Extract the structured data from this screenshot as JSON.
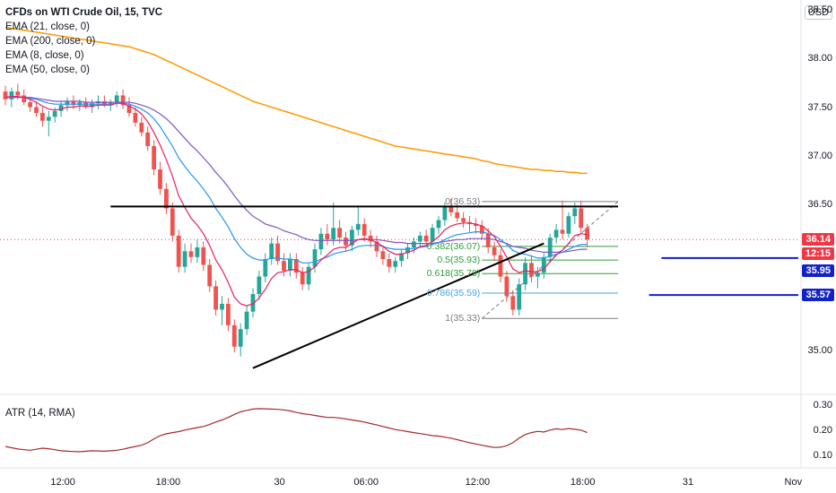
{
  "legend": {
    "symbol": "CFDs on WTI Crude Oil, 15, TVC",
    "ema21": "EMA (21, close, 0)",
    "ema200": "EMA (200, close, 0)",
    "ema8": "EMA (8, close, 0)",
    "ema50": "EMA (50, close, 0)"
  },
  "atr_label": "ATR (14, RMA)",
  "currency": "USD",
  "colors": {
    "up": "#26a69a",
    "down": "#ef5350",
    "ema8": "#e91e63",
    "ema21": "#2196f3",
    "ema50": "#7e57c2",
    "ema200": "#ff9800",
    "atr": "#a52a2a",
    "marker_blue": "#1321c8",
    "price_red": "#f23645",
    "fib_0_5": "#2e9c3e",
    "fib_0_786": "#4aa2e2",
    "fib_grey": "#787b86"
  },
  "price_axis": {
    "ticks": [
      "38.50",
      "38.00",
      "37.50",
      "37.00",
      "36.50",
      "35.00"
    ],
    "tick_values": [
      38.5,
      38.0,
      37.5,
      37.0,
      36.5,
      35.0
    ]
  },
  "price_tags": [
    {
      "label": "36.14",
      "value": 36.14,
      "color": "#f23645"
    },
    {
      "label": "12:15",
      "value": 35.94,
      "color": "#f23645"
    },
    {
      "label": "35.95",
      "value": 35.95,
      "color": "#1321c8"
    },
    {
      "label": "35.57",
      "value": 35.57,
      "color": "#1321c8"
    }
  ],
  "atr_axis": {
    "ticks": [
      "0.30",
      "0.20",
      "0.10"
    ],
    "tick_values": [
      0.3,
      0.2,
      0.1
    ]
  },
  "time_axis": {
    "labels": [
      "12:00",
      "18:00",
      "30",
      "06:00",
      "12:00",
      "18:00",
      "31",
      "Nov"
    ]
  },
  "fib_levels": [
    {
      "label": "0(36.53)",
      "ratio": 0,
      "price": 36.53,
      "color": "#787b86"
    },
    {
      "label": "0.382(36.07)",
      "ratio": 0.382,
      "price": 36.07,
      "color": "#2e9c3e"
    },
    {
      "label": "0.5(35.93)",
      "ratio": 0.5,
      "price": 35.93,
      "color": "#2e9c3e"
    },
    {
      "label": "0.618(35.79)",
      "ratio": 0.618,
      "price": 35.79,
      "color": "#2e9c3e"
    },
    {
      "label": "0.786(35.59)",
      "ratio": 0.786,
      "price": 35.59,
      "color": "#4aa2e2"
    },
    {
      "label": "1(35.33)",
      "ratio": 1,
      "price": 35.33,
      "color": "#787b86"
    }
  ],
  "chart_data": {
    "type": "candlestick",
    "title": "CFDs on WTI Crude Oil, 15, TVC",
    "ylim": [
      34.55,
      38.6
    ],
    "atr_ylim": [
      0.05,
      0.32
    ],
    "candles": [
      [
        37.66,
        37.72,
        37.52,
        37.58
      ],
      [
        37.58,
        37.7,
        37.5,
        37.66
      ],
      [
        37.66,
        37.74,
        37.58,
        37.62
      ],
      [
        37.62,
        37.68,
        37.52,
        37.55
      ],
      [
        37.55,
        37.6,
        37.45,
        37.5
      ],
      [
        37.5,
        37.56,
        37.4,
        37.44
      ],
      [
        37.44,
        37.5,
        37.3,
        37.36
      ],
      [
        37.36,
        37.46,
        37.2,
        37.4
      ],
      [
        37.4,
        37.5,
        37.34,
        37.46
      ],
      [
        37.46,
        37.56,
        37.4,
        37.52
      ],
      [
        37.52,
        37.6,
        37.46,
        37.56
      ],
      [
        37.56,
        37.62,
        37.48,
        37.52
      ],
      [
        37.52,
        37.58,
        37.46,
        37.55
      ],
      [
        37.55,
        37.6,
        37.48,
        37.5
      ],
      [
        37.5,
        37.58,
        37.44,
        37.54
      ],
      [
        37.54,
        37.62,
        37.48,
        37.56
      ],
      [
        37.56,
        37.62,
        37.5,
        37.52
      ],
      [
        37.52,
        37.58,
        37.46,
        37.55
      ],
      [
        37.55,
        37.66,
        37.5,
        37.62
      ],
      [
        37.62,
        37.68,
        37.48,
        37.52
      ],
      [
        37.52,
        37.6,
        37.4,
        37.44
      ],
      [
        37.44,
        37.5,
        37.3,
        37.34
      ],
      [
        37.34,
        37.4,
        37.2,
        37.24
      ],
      [
        37.24,
        37.3,
        37.05,
        37.1
      ],
      [
        37.1,
        37.16,
        36.8,
        36.86
      ],
      [
        36.86,
        36.94,
        36.6,
        36.66
      ],
      [
        36.66,
        36.72,
        36.4,
        36.46
      ],
      [
        36.46,
        36.52,
        36.12,
        36.18
      ],
      [
        36.18,
        36.24,
        35.8,
        35.86
      ],
      [
        35.86,
        36.1,
        35.8,
        36.02
      ],
      [
        36.02,
        36.1,
        35.9,
        35.96
      ],
      [
        35.96,
        36.14,
        35.9,
        36.06
      ],
      [
        36.06,
        36.12,
        35.82,
        35.88
      ],
      [
        35.88,
        35.94,
        35.6,
        35.66
      ],
      [
        35.66,
        35.72,
        35.36,
        35.42
      ],
      [
        35.42,
        35.56,
        35.26,
        35.48
      ],
      [
        35.48,
        35.54,
        35.2,
        35.26
      ],
      [
        35.26,
        35.32,
        34.98,
        35.04
      ],
      [
        35.04,
        35.28,
        34.94,
        35.22
      ],
      [
        35.22,
        35.46,
        35.16,
        35.4
      ],
      [
        35.4,
        35.64,
        35.34,
        35.58
      ],
      [
        35.58,
        35.82,
        35.52,
        35.76
      ],
      [
        35.76,
        36.0,
        35.7,
        35.94
      ],
      [
        35.94,
        36.16,
        35.88,
        36.1
      ],
      [
        36.1,
        36.18,
        35.88,
        35.92
      ],
      [
        35.92,
        36.0,
        35.76,
        35.82
      ],
      [
        35.82,
        36.0,
        35.76,
        35.94
      ],
      [
        35.94,
        36.0,
        35.74,
        35.8
      ],
      [
        35.8,
        35.86,
        35.62,
        35.68
      ],
      [
        35.68,
        35.9,
        35.62,
        35.86
      ],
      [
        35.86,
        36.1,
        35.8,
        36.04
      ],
      [
        36.04,
        36.26,
        35.98,
        36.2
      ],
      [
        36.2,
        36.3,
        36.08,
        36.14
      ],
      [
        36.14,
        36.52,
        36.08,
        36.26
      ],
      [
        36.26,
        36.34,
        36.1,
        36.16
      ],
      [
        36.16,
        36.22,
        36.02,
        36.08
      ],
      [
        36.08,
        36.28,
        36.02,
        36.24
      ],
      [
        36.24,
        36.48,
        36.18,
        36.3
      ],
      [
        36.3,
        36.36,
        36.12,
        36.18
      ],
      [
        36.18,
        36.24,
        36.06,
        36.12
      ],
      [
        36.12,
        36.18,
        35.96,
        36.02
      ],
      [
        36.02,
        36.08,
        35.88,
        35.94
      ],
      [
        35.94,
        36.0,
        35.8,
        35.86
      ],
      [
        35.86,
        35.96,
        35.8,
        35.92
      ],
      [
        35.92,
        36.04,
        35.86,
        36.0
      ],
      [
        36.0,
        36.1,
        35.94,
        36.06
      ],
      [
        36.06,
        36.16,
        36.0,
        36.12
      ],
      [
        36.12,
        36.22,
        36.06,
        36.18
      ],
      [
        36.18,
        36.24,
        36.06,
        36.12
      ],
      [
        36.12,
        36.3,
        36.08,
        36.26
      ],
      [
        36.26,
        36.38,
        36.2,
        36.34
      ],
      [
        36.34,
        36.52,
        36.28,
        36.48
      ],
      [
        36.48,
        36.56,
        36.38,
        36.42
      ],
      [
        36.42,
        36.5,
        36.32,
        36.36
      ],
      [
        36.36,
        36.42,
        36.26,
        36.32
      ],
      [
        36.32,
        36.38,
        36.22,
        36.3
      ],
      [
        36.3,
        36.36,
        36.2,
        36.28
      ],
      [
        36.28,
        36.34,
        36.14,
        36.2
      ],
      [
        36.2,
        36.26,
        36.0,
        36.06
      ],
      [
        36.06,
        36.12,
        35.92,
        35.98
      ],
      [
        35.98,
        36.04,
        35.7,
        35.76
      ],
      [
        35.76,
        35.82,
        35.5,
        35.56
      ],
      [
        35.56,
        35.62,
        35.36,
        35.42
      ],
      [
        35.42,
        35.74,
        35.36,
        35.68
      ],
      [
        35.68,
        35.96,
        35.62,
        35.9
      ],
      [
        35.9,
        35.98,
        35.7,
        35.76
      ],
      [
        35.76,
        35.86,
        35.64,
        35.8
      ],
      [
        35.8,
        36.0,
        35.74,
        35.96
      ],
      [
        35.96,
        36.2,
        35.9,
        36.16
      ],
      [
        36.16,
        36.3,
        36.1,
        36.24
      ],
      [
        36.24,
        36.54,
        36.14,
        36.2
      ],
      [
        36.2,
        36.42,
        36.16,
        36.38
      ],
      [
        36.38,
        36.52,
        36.3,
        36.46
      ],
      [
        36.46,
        36.54,
        36.2,
        36.26
      ],
      [
        36.26,
        36.3,
        36.06,
        36.14
      ]
    ],
    "ema8": [
      37.6,
      37.61,
      37.61,
      37.6,
      37.58,
      37.55,
      37.51,
      37.48,
      37.47,
      37.48,
      37.5,
      37.5,
      37.51,
      37.51,
      37.51,
      37.52,
      37.52,
      37.52,
      37.54,
      37.54,
      37.51,
      37.48,
      37.43,
      37.35,
      37.24,
      37.11,
      36.96,
      36.79,
      36.59,
      36.47,
      36.36,
      36.29,
      36.2,
      36.08,
      35.93,
      35.83,
      35.7,
      35.55,
      35.48,
      35.46,
      35.48,
      35.54,
      35.63,
      35.74,
      35.8,
      35.81,
      35.83,
      35.83,
      35.8,
      35.81,
      35.86,
      35.93,
      35.98,
      36.04,
      36.06,
      36.06,
      36.1,
      36.14,
      36.15,
      36.14,
      36.11,
      36.07,
      36.02,
      35.99,
      35.99,
      36.01,
      36.03,
      36.07,
      36.08,
      36.12,
      36.17,
      36.24,
      36.28,
      36.3,
      36.31,
      36.31,
      36.3,
      36.28,
      36.23,
      36.17,
      36.07,
      35.96,
      35.84,
      35.8,
      35.82,
      35.81,
      35.81,
      35.84,
      35.91,
      35.98,
      36.03,
      36.1,
      36.18,
      36.2,
      36.19
    ],
    "ema21": [
      37.6,
      37.6,
      37.6,
      37.6,
      37.59,
      37.58,
      37.56,
      37.54,
      37.53,
      37.53,
      37.53,
      37.53,
      37.53,
      37.53,
      37.53,
      37.53,
      37.53,
      37.53,
      37.54,
      37.54,
      37.53,
      37.51,
      37.48,
      37.44,
      37.38,
      37.3,
      37.2,
      37.1,
      36.98,
      36.89,
      36.81,
      36.74,
      36.66,
      36.57,
      36.46,
      36.37,
      36.27,
      36.15,
      36.06,
      35.99,
      35.95,
      35.93,
      35.93,
      35.95,
      35.95,
      35.94,
      35.94,
      35.93,
      35.9,
      35.9,
      35.91,
      35.94,
      35.96,
      35.99,
      36.01,
      36.02,
      36.04,
      36.07,
      36.08,
      36.08,
      36.08,
      36.07,
      36.05,
      36.04,
      36.04,
      36.04,
      36.05,
      36.06,
      36.07,
      36.09,
      36.11,
      36.14,
      36.17,
      36.19,
      36.2,
      36.21,
      36.22,
      36.22,
      36.2,
      36.18,
      36.14,
      36.09,
      36.03,
      36.0,
      35.99,
      35.97,
      35.95,
      35.95,
      35.97,
      35.99,
      36.01,
      36.04,
      36.07,
      36.09,
      36.09
    ],
    "ema50": [
      37.6,
      37.6,
      37.6,
      37.6,
      37.6,
      37.59,
      37.58,
      37.57,
      37.56,
      37.56,
      37.56,
      37.56,
      37.56,
      37.55,
      37.55,
      37.55,
      37.55,
      37.55,
      37.55,
      37.55,
      37.55,
      37.54,
      37.52,
      37.5,
      37.47,
      37.43,
      37.38,
      37.32,
      37.25,
      37.18,
      37.11,
      37.05,
      36.98,
      36.91,
      36.83,
      36.76,
      36.68,
      36.59,
      36.51,
      36.44,
      36.38,
      36.34,
      36.3,
      36.28,
      36.26,
      36.23,
      36.21,
      36.19,
      36.16,
      36.14,
      36.13,
      36.13,
      36.13,
      36.13,
      36.13,
      36.13,
      36.13,
      36.14,
      36.14,
      36.14,
      36.14,
      36.13,
      36.12,
      36.11,
      36.11,
      36.1,
      36.1,
      36.1,
      36.1,
      36.1,
      36.11,
      36.12,
      36.13,
      36.14,
      36.14,
      36.15,
      36.15,
      36.15,
      36.15,
      36.14,
      36.12,
      36.1,
      36.07,
      36.06,
      36.05,
      36.03,
      36.02,
      36.01,
      36.01,
      36.01,
      36.01,
      36.02,
      36.03,
      36.04,
      36.04
    ],
    "ema200": [
      38.32,
      38.31,
      38.3,
      38.29,
      38.28,
      38.27,
      38.26,
      38.25,
      38.24,
      38.23,
      38.22,
      38.21,
      38.2,
      38.19,
      38.18,
      38.17,
      38.16,
      38.15,
      38.14,
      38.13,
      38.12,
      38.1,
      38.08,
      38.06,
      38.04,
      38.01,
      37.98,
      37.95,
      37.92,
      37.89,
      37.86,
      37.83,
      37.8,
      37.77,
      37.74,
      37.71,
      37.68,
      37.65,
      37.62,
      37.59,
      37.56,
      37.54,
      37.52,
      37.5,
      37.48,
      37.46,
      37.44,
      37.42,
      37.4,
      37.38,
      37.36,
      37.34,
      37.32,
      37.3,
      37.28,
      37.26,
      37.24,
      37.22,
      37.2,
      37.18,
      37.16,
      37.14,
      37.12,
      37.1,
      37.09,
      37.08,
      37.07,
      37.06,
      37.05,
      37.04,
      37.03,
      37.02,
      37.01,
      37.0,
      36.99,
      36.98,
      36.97,
      36.95,
      36.94,
      36.92,
      36.91,
      36.9,
      36.89,
      36.88,
      36.87,
      36.86,
      36.86,
      36.85,
      36.85,
      36.84,
      36.84,
      36.83,
      36.83,
      36.82,
      36.82
    ],
    "atr": [
      0.135,
      0.13,
      0.125,
      0.122,
      0.12,
      0.124,
      0.128,
      0.126,
      0.122,
      0.118,
      0.116,
      0.115,
      0.114,
      0.116,
      0.118,
      0.117,
      0.116,
      0.118,
      0.12,
      0.124,
      0.13,
      0.135,
      0.14,
      0.15,
      0.165,
      0.178,
      0.185,
      0.19,
      0.194,
      0.2,
      0.205,
      0.21,
      0.214,
      0.222,
      0.232,
      0.24,
      0.25,
      0.262,
      0.272,
      0.278,
      0.283,
      0.285,
      0.284,
      0.283,
      0.282,
      0.28,
      0.276,
      0.27,
      0.265,
      0.262,
      0.258,
      0.254,
      0.25,
      0.25,
      0.248,
      0.244,
      0.24,
      0.236,
      0.232,
      0.226,
      0.22,
      0.214,
      0.208,
      0.202,
      0.198,
      0.194,
      0.19,
      0.186,
      0.182,
      0.178,
      0.176,
      0.172,
      0.168,
      0.162,
      0.156,
      0.15,
      0.145,
      0.14,
      0.135,
      0.131,
      0.132,
      0.138,
      0.15,
      0.168,
      0.182,
      0.19,
      0.195,
      0.192,
      0.2,
      0.205,
      0.202,
      0.206,
      0.203,
      0.2,
      0.19
    ],
    "drawings": {
      "resistance_line": [
        [
          17,
          36.48
        ],
        [
          99,
          36.48
        ]
      ],
      "support_trendline": [
        [
          40,
          34.82
        ],
        [
          87,
          36.1
        ]
      ],
      "marker_lines": [
        {
          "from": 106,
          "price": 35.95
        },
        {
          "from": 104,
          "price": 35.57
        }
      ]
    }
  }
}
